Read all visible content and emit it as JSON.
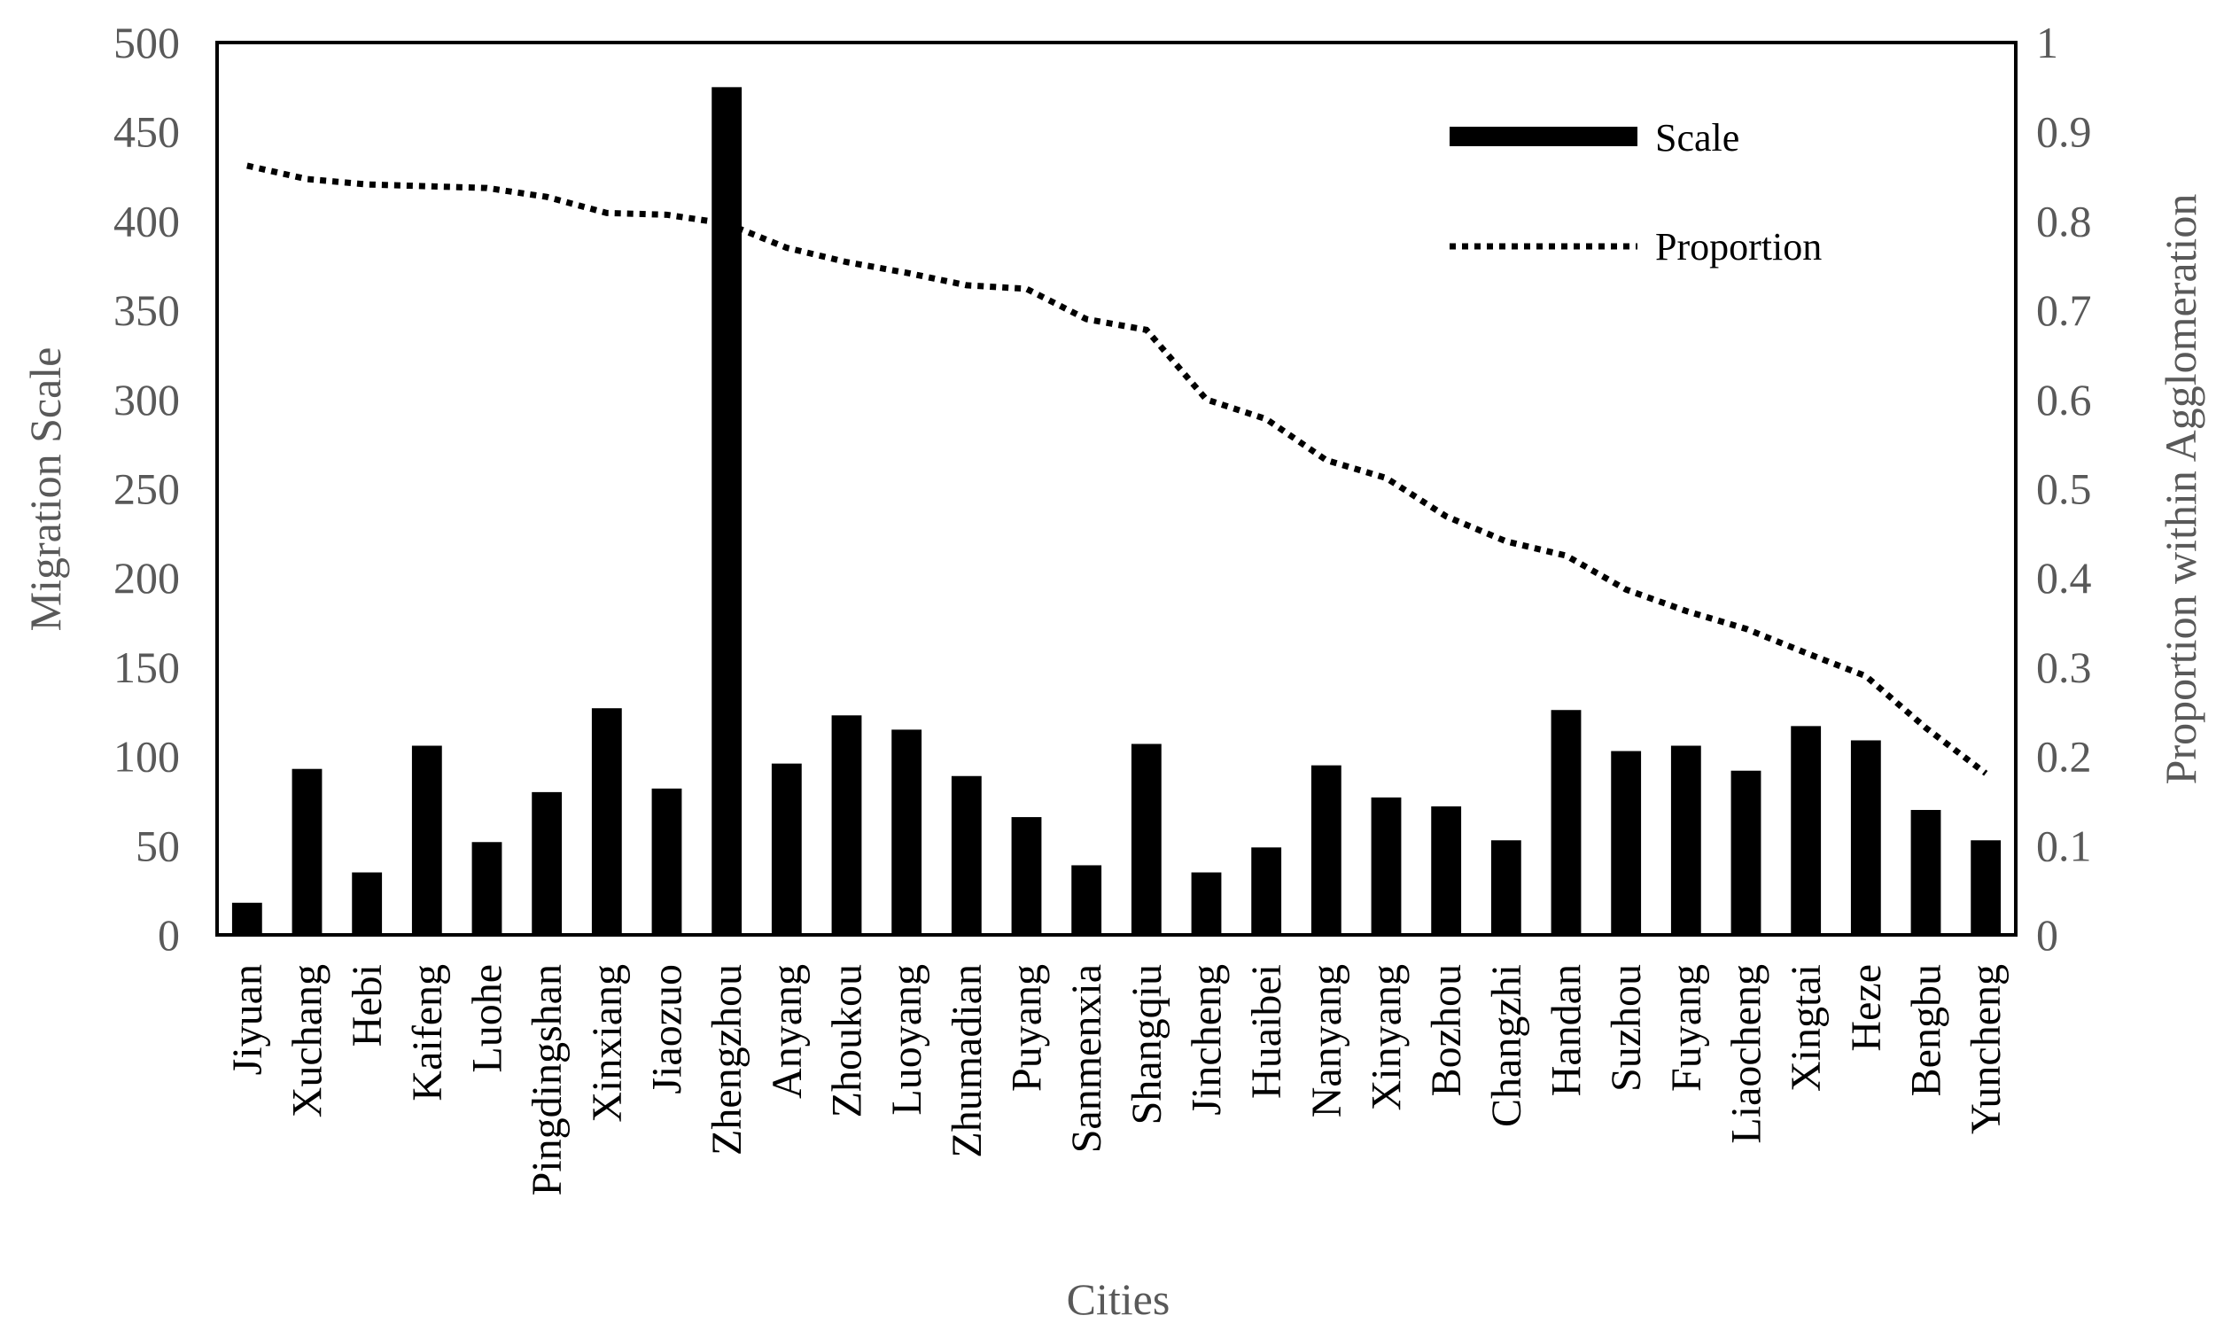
{
  "chart_data": {
    "type": "bar",
    "title": "",
    "xlabel": "Cities",
    "ylabel": "Migration Scale",
    "y2label": "Proportion within Agglomeration",
    "ylim": [
      0,
      500
    ],
    "y2lim": [
      0,
      1
    ],
    "yticks": [
      "0",
      "50",
      "100",
      "150",
      "200",
      "250",
      "300",
      "350",
      "400",
      "450",
      "500"
    ],
    "y2ticks": [
      "0",
      "0.1",
      "0.2",
      "0.3",
      "0.4",
      "0.5",
      "0.6",
      "0.7",
      "0.8",
      "0.9",
      "1"
    ],
    "categories": [
      "Jiyuan",
      "Xuchang",
      "Hebi",
      "Kaifeng",
      "Luohe",
      "Pingdingshan",
      "Xinxiang",
      "Jiaozuo",
      "Zhengzhou",
      "Anyang",
      "Zhoukou",
      "Luoyang",
      "Zhumadian",
      "Puyang",
      "Sanmenxia",
      "Shangqiu",
      "Jincheng",
      "Huaibei",
      "Nanyang",
      "Xinyang",
      "Bozhou",
      "Changzhi",
      "Handan",
      "Suzhou",
      "Fuyang",
      "Liaocheng",
      "Xingtai",
      "Heze",
      "Bengbu",
      "Yuncheng"
    ],
    "series": [
      {
        "name": "Scale",
        "type": "bar",
        "axis": "left",
        "color": "#000000",
        "values": [
          18,
          93,
          35,
          106,
          52,
          80,
          127,
          82,
          475,
          96,
          123,
          115,
          89,
          66,
          39,
          107,
          35,
          49,
          95,
          77,
          72,
          53,
          126,
          103,
          106,
          92,
          117,
          109,
          70,
          53
        ]
      },
      {
        "name": "Proportion",
        "type": "line",
        "style": "dotted",
        "axis": "right",
        "color": "#000000",
        "values": [
          0.862,
          0.847,
          0.841,
          0.839,
          0.837,
          0.827,
          0.809,
          0.807,
          0.797,
          0.77,
          0.754,
          0.742,
          0.728,
          0.724,
          0.69,
          0.678,
          0.6,
          0.578,
          0.532,
          0.512,
          0.469,
          0.441,
          0.425,
          0.387,
          0.363,
          0.343,
          0.316,
          0.29,
          0.232,
          0.181
        ]
      }
    ],
    "legend": {
      "position": "top-right",
      "items": [
        {
          "label": "Scale",
          "symbol": "bar"
        },
        {
          "label": "Proportion",
          "symbol": "dotted-line"
        }
      ]
    }
  }
}
